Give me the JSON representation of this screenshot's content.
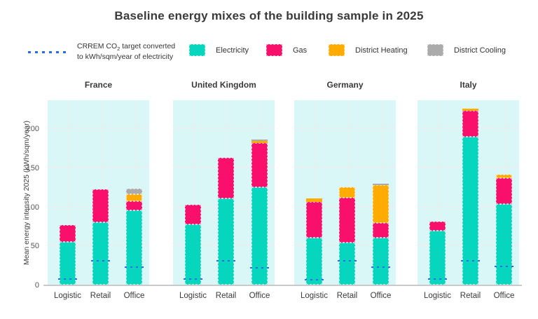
{
  "title": "Baseline energy mixes of the building sample in 2025",
  "legend": {
    "target_line1_prefix": "CRREM CO",
    "target_line1_sub": "2",
    "target_line1_suffix": " target converted",
    "target_line2": "to kWh/sqm/year of electricity",
    "items": [
      {
        "key": "electricity",
        "label": "Electricity"
      },
      {
        "key": "gas",
        "label": "Gas"
      },
      {
        "key": "district_heating",
        "label": "District Heating"
      },
      {
        "key": "district_cooling",
        "label": "District Cooling"
      }
    ]
  },
  "colors": {
    "electricity": "#06d6bd",
    "gas": "#f8106c",
    "district_heating": "#ffab00",
    "district_cooling": "#ababab",
    "target": "#2a6ce0",
    "panel_bg": "#d9f7f6"
  },
  "chart_data": {
    "type": "bar",
    "stacked": true,
    "title": "Baseline energy mixes of the building sample in 2025",
    "ylabel": "Mean energy intensity 2025 (kWh/sqm/year)",
    "xlabel": "",
    "unit": "kWh/sqm/year",
    "ylim": [
      0,
      236
    ],
    "yticks": [
      0,
      50,
      100,
      150,
      200
    ],
    "grid": true,
    "legend_position": "top",
    "categories": [
      "Logistic",
      "Retail",
      "Office"
    ],
    "series_names": [
      "Electricity",
      "Gas",
      "District Heating",
      "District Cooling"
    ],
    "target_series_name": "CRREM CO2 target converted to kWh/sqm/year of electricity",
    "facets": [
      {
        "country": "France",
        "bars": [
          {
            "category": "Logistic",
            "electricity": 55,
            "gas": 21,
            "district_heating": 0,
            "district_cooling": 0,
            "target": 8
          },
          {
            "category": "Retail",
            "electricity": 80,
            "gas": 42,
            "district_heating": 0,
            "district_cooling": 0,
            "target": 31
          },
          {
            "category": "Office",
            "electricity": 95,
            "gas": 12,
            "district_heating": 9,
            "district_cooling": 7,
            "target": 23
          }
        ]
      },
      {
        "country": "United Kingdom",
        "bars": [
          {
            "category": "Logistic",
            "electricity": 77,
            "gas": 25,
            "district_heating": 0,
            "district_cooling": 0,
            "target": 8
          },
          {
            "category": "Retail",
            "electricity": 110,
            "gas": 52,
            "district_heating": 0,
            "district_cooling": 0,
            "target": 31
          },
          {
            "category": "Office",
            "electricity": 125,
            "gas": 56,
            "district_heating": 3,
            "district_cooling": 2,
            "target": 22
          }
        ]
      },
      {
        "country": "Germany",
        "bars": [
          {
            "category": "Logistic",
            "electricity": 60,
            "gas": 46,
            "district_heating": 4,
            "district_cooling": 0,
            "target": 7
          },
          {
            "category": "Retail",
            "electricity": 54,
            "gas": 57,
            "district_heating": 14,
            "district_cooling": 0,
            "target": 31
          },
          {
            "category": "Office",
            "electricity": 60,
            "gas": 19,
            "district_heating": 48,
            "district_cooling": 2,
            "target": 23
          }
        ]
      },
      {
        "country": "Italy",
        "bars": [
          {
            "category": "Logistic",
            "electricity": 69,
            "gas": 12,
            "district_heating": 0,
            "district_cooling": 0,
            "target": 8
          },
          {
            "category": "Retail",
            "electricity": 189,
            "gas": 33,
            "district_heating": 3,
            "district_cooling": 0,
            "target": 31
          },
          {
            "category": "Office",
            "electricity": 103,
            "gas": 33,
            "district_heating": 5,
            "district_cooling": 0,
            "target": 24
          }
        ]
      }
    ]
  }
}
